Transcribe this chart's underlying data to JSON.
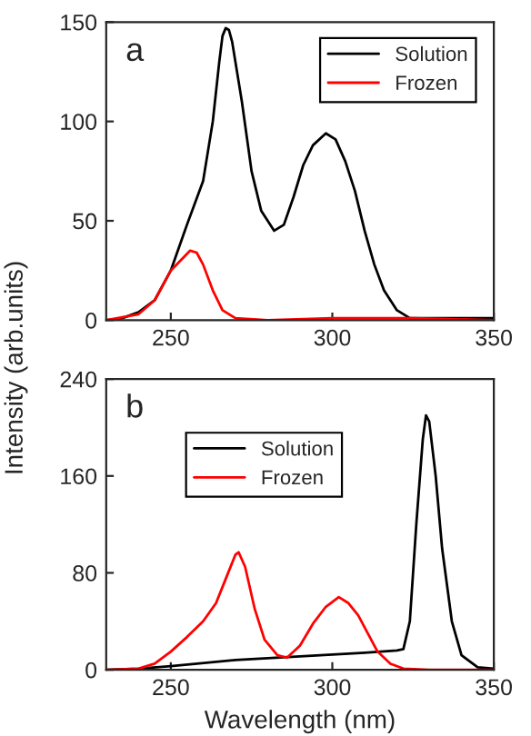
{
  "chart_data": [
    {
      "type": "line",
      "ylabel": "Intensity (arb.units)",
      "annotations": [
        "a"
      ],
      "xlim": [
        230,
        350
      ],
      "xticks": [
        250,
        300,
        350
      ],
      "ylim": [
        0,
        150
      ],
      "yticks": [
        0,
        50,
        100,
        150
      ],
      "legend": "top right",
      "grid": false,
      "series": [
        {
          "name": "Solution",
          "color": "#000000",
          "x": [
            230,
            235,
            240,
            245,
            250,
            255,
            260,
            263,
            265,
            266,
            267,
            268,
            269,
            272,
            275,
            278,
            282,
            285,
            288,
            291,
            294,
            298,
            301,
            304,
            307,
            310,
            313,
            316,
            320,
            324,
            330,
            350
          ],
          "values": [
            0,
            1,
            4,
            10,
            25,
            48,
            70,
            100,
            130,
            143,
            147,
            146,
            140,
            110,
            75,
            55,
            45,
            48,
            62,
            78,
            88,
            94,
            91,
            80,
            65,
            45,
            28,
            15,
            5,
            1,
            1,
            1
          ]
        },
        {
          "name": "Frozen",
          "color": "#ff0000",
          "x": [
            230,
            240,
            245,
            250,
            253,
            256,
            258,
            260,
            263,
            266,
            270,
            280,
            300,
            315,
            325,
            350
          ],
          "values": [
            0,
            3,
            10,
            25,
            30,
            35,
            34,
            28,
            15,
            5,
            1,
            0,
            1,
            1,
            1,
            0
          ]
        }
      ]
    },
    {
      "type": "line",
      "xlabel": "Wavelength (nm)",
      "annotations": [
        "b"
      ],
      "xlim": [
        230,
        350
      ],
      "xticks": [
        250,
        300,
        350
      ],
      "ylim": [
        0,
        240
      ],
      "yticks": [
        0,
        80,
        160,
        240
      ],
      "legend": "top left",
      "grid": false,
      "series": [
        {
          "name": "Solution",
          "color": "#000000",
          "x": [
            230,
            240,
            250,
            270,
            290,
            310,
            320,
            322,
            324,
            326,
            328,
            329,
            330,
            332,
            334,
            337,
            340,
            345,
            350
          ],
          "values": [
            0,
            1,
            3,
            8,
            11,
            14,
            16,
            17,
            40,
            120,
            190,
            210,
            205,
            160,
            100,
            40,
            12,
            2,
            1
          ]
        },
        {
          "name": "Frozen",
          "color": "#ff0000",
          "x": [
            230,
            240,
            245,
            250,
            255,
            260,
            264,
            267,
            270,
            271,
            273,
            276,
            279,
            283,
            286,
            290,
            294,
            298,
            302,
            305,
            308,
            311,
            314,
            318,
            322,
            330,
            350
          ],
          "values": [
            0,
            1,
            5,
            15,
            27,
            40,
            55,
            75,
            95,
            97,
            85,
            50,
            25,
            12,
            10,
            20,
            38,
            52,
            60,
            55,
            45,
            30,
            15,
            5,
            1,
            0,
            0
          ]
        }
      ]
    }
  ]
}
